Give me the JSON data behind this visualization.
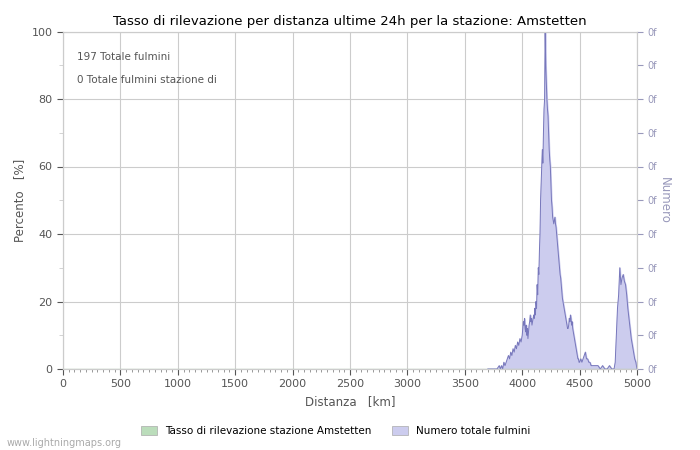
{
  "title": "Tasso di rilevazione per distanza ultime 24h per la stazione: Amstetten",
  "xlabel": "Distanza   [km]",
  "ylabel_left": "Percento   [%]",
  "ylabel_right": "Numero",
  "annotation_lines": [
    "197 Totale fulmini",
    "0 Totale fulmini stazione di"
  ],
  "xlim": [
    0,
    5000
  ],
  "ylim": [
    0,
    100
  ],
  "xticks": [
    0,
    500,
    1000,
    1500,
    2000,
    2500,
    3000,
    3500,
    4000,
    4500,
    5000
  ],
  "yticks_left": [
    0,
    20,
    40,
    60,
    80,
    100
  ],
  "yticks_left_minor": [
    10,
    30,
    50,
    70,
    90
  ],
  "right_tick_positions": [
    0,
    10,
    20,
    30,
    40,
    50,
    60,
    70,
    80,
    90,
    100
  ],
  "right_axis_color": "#9999bb",
  "line_color": "#7777bb",
  "fill_color": "#ccccee",
  "green_fill_color": "#bbddbb",
  "background_color": "#ffffff",
  "grid_color": "#cccccc",
  "text_color": "#555555",
  "legend_label_green": "Tasso di rilevazione stazione Amstetten",
  "legend_label_blue": "Numero totale fulmini",
  "watermark": "www.lightningmaps.org",
  "distances": [
    3700,
    3720,
    3740,
    3760,
    3780,
    3800,
    3810,
    3820,
    3830,
    3840,
    3850,
    3860,
    3870,
    3880,
    3890,
    3900,
    3910,
    3920,
    3930,
    3940,
    3950,
    3960,
    3970,
    3980,
    3990,
    4000,
    4005,
    4010,
    4015,
    4020,
    4025,
    4030,
    4035,
    4040,
    4045,
    4050,
    4055,
    4060,
    4065,
    4070,
    4075,
    4080,
    4085,
    4090,
    4095,
    4100,
    4105,
    4110,
    4115,
    4120,
    4125,
    4130,
    4135,
    4140,
    4145,
    4150,
    4155,
    4160,
    4165,
    4170,
    4175,
    4180,
    4185,
    4190,
    4195,
    4200,
    4205,
    4210,
    4215,
    4220,
    4225,
    4230,
    4235,
    4240,
    4245,
    4250,
    4255,
    4260,
    4265,
    4270,
    4275,
    4280,
    4285,
    4290,
    4295,
    4300,
    4305,
    4310,
    4315,
    4320,
    4325,
    4330,
    4335,
    4340,
    4345,
    4350,
    4355,
    4360,
    4365,
    4370,
    4375,
    4380,
    4385,
    4390,
    4395,
    4400,
    4405,
    4410,
    4415,
    4420,
    4425,
    4430,
    4435,
    4440,
    4445,
    4450,
    4455,
    4460,
    4465,
    4470,
    4475,
    4480,
    4485,
    4490,
    4495,
    4500,
    4510,
    4520,
    4530,
    4540,
    4550,
    4560,
    4570,
    4580,
    4590,
    4600,
    4620,
    4640,
    4660,
    4680,
    4700,
    4720,
    4740,
    4760,
    4780,
    4800,
    4810,
    4820,
    4830,
    4840,
    4850,
    4860,
    4870,
    4880,
    4890,
    4900,
    4910,
    4920,
    4930,
    4940,
    4950,
    4960,
    4970,
    4980,
    4990,
    5000
  ],
  "values": [
    0,
    0,
    0,
    0,
    0,
    1,
    0,
    1,
    0,
    2,
    1,
    2,
    3,
    4,
    3,
    5,
    4,
    6,
    5,
    7,
    6,
    8,
    7,
    9,
    8,
    10,
    12,
    14,
    13,
    15,
    12,
    11,
    13,
    10,
    12,
    9,
    11,
    13,
    14,
    16,
    14,
    15,
    13,
    14,
    15,
    16,
    15,
    18,
    16,
    20,
    18,
    25,
    22,
    30,
    28,
    35,
    40,
    50,
    55,
    60,
    65,
    61,
    70,
    77,
    80,
    100,
    90,
    85,
    80,
    77,
    75,
    70,
    65,
    62,
    60,
    55,
    50,
    48,
    45,
    44,
    43,
    44,
    45,
    43,
    42,
    40,
    38,
    36,
    34,
    32,
    30,
    28,
    27,
    25,
    23,
    21,
    20,
    19,
    18,
    17,
    16,
    15,
    14,
    13,
    12,
    12,
    13,
    15,
    14,
    16,
    15,
    13,
    14,
    12,
    11,
    10,
    9,
    8,
    7,
    6,
    5,
    4,
    3,
    3,
    2,
    2,
    3,
    2,
    3,
    4,
    5,
    3,
    3,
    2,
    2,
    1,
    1,
    1,
    1,
    0,
    1,
    0,
    0,
    1,
    0,
    0,
    2,
    10,
    18,
    22,
    30,
    25,
    27,
    28,
    26,
    25,
    22,
    18,
    15,
    12,
    9,
    7,
    5,
    3,
    2,
    0
  ]
}
